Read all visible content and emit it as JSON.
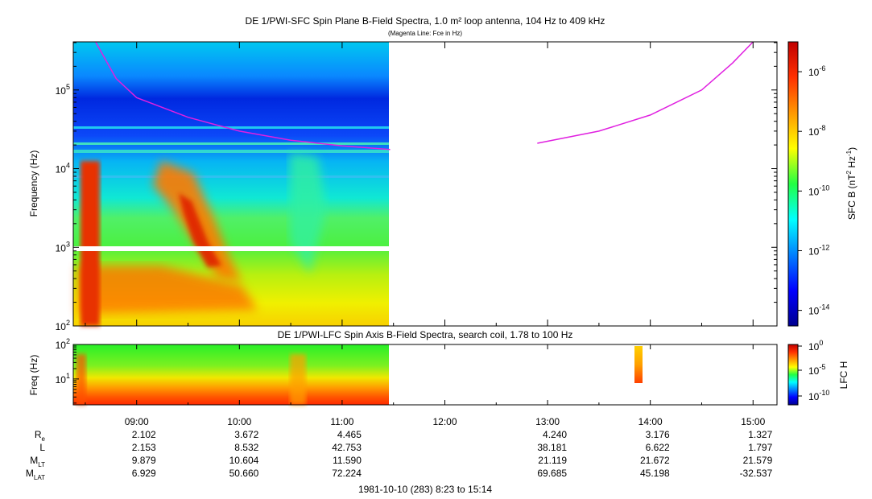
{
  "chart_data": [
    {
      "type": "heatmap",
      "title": "DE 1/PWI-SFC  Spin Plane B-Field Spectra, 1.0 m² loop antenna, 104 Hz to 409 kHz",
      "subtitle": "(Magenta Line: Fce in Hz)",
      "ylabel": "Frequency (Hz)",
      "y_scale": "log",
      "ylim": [
        100,
        409000
      ],
      "y_ticks": [
        "10^2",
        "10^3",
        "10^4",
        "10^5"
      ],
      "data_coverage_hours": [
        8.383,
        11.467
      ],
      "colorbar": {
        "label": "SFC B (nT^2 Hz^-1)",
        "scale": "log",
        "range": [
          3e-15,
          1e-05
        ],
        "ticks": [
          "10^-6",
          "10^-8",
          "10^-10",
          "10^-12",
          "10^-14"
        ]
      },
      "fce_line": {
        "color": "#e020e0",
        "segments": [
          {
            "x": [
              8.6,
              8.8,
              9.0,
              9.5,
              10.0,
              10.5,
              11.0,
              11.467
            ],
            "y": [
              409000,
              140000,
              80000,
              45000,
              30000,
              23000,
              19500,
              17500
            ]
          },
          {
            "x": [
              12.9,
              13.5,
              14.0,
              14.5,
              14.8,
              15.0
            ],
            "y": [
              21000,
              30000,
              48000,
              100000,
              220000,
              409000
            ]
          }
        ]
      }
    },
    {
      "type": "heatmap",
      "title": "DE 1/PWI-LFC  Spin Axis B-Field Spectra, search coil, 1.78 to 100 Hz",
      "ylabel": "Freq (Hz)",
      "y_scale": "log",
      "ylim": [
        1.78,
        100
      ],
      "y_ticks": [
        "10^1",
        "10^2"
      ],
      "data_coverage_hours": [
        8.383,
        11.467
      ],
      "colorbar": {
        "label": "LFC H",
        "scale": "log",
        "ticks": [
          "10^0",
          "10^-5",
          "10^-10"
        ]
      }
    }
  ],
  "time_axis": {
    "xlim": [
      8.383,
      15.233
    ],
    "tick_labels": [
      "09:00",
      "10:00",
      "11:00",
      "12:00",
      "13:00",
      "14:00",
      "15:00"
    ]
  },
  "ephemeris": {
    "row_labels": [
      {
        "main": "R",
        "sub": "e"
      },
      {
        "main": "L",
        "sub": ""
      },
      {
        "main": "M",
        "sub": "LT"
      },
      {
        "main": "M",
        "sub": "LAT"
      }
    ],
    "columns": [
      {
        "time": "09:00",
        "values": [
          "2.102",
          "2.153",
          "9.879",
          "6.929"
        ]
      },
      {
        "time": "10:00",
        "values": [
          "3.672",
          "8.532",
          "10.604",
          "50.660"
        ]
      },
      {
        "time": "11:00",
        "values": [
          "4.465",
          "42.753",
          "11.590",
          "72.224"
        ]
      },
      {
        "time": "13:00",
        "values": [
          "4.240",
          "38.181",
          "21.119",
          "69.685"
        ]
      },
      {
        "time": "14:00",
        "values": [
          "3.176",
          "6.622",
          "21.672",
          "45.198"
        ]
      },
      {
        "time": "15:00",
        "values": [
          "1.327",
          "1.797",
          "21.579",
          "-32.537"
        ]
      }
    ]
  },
  "footer": "1981-10-10 (283) 8:23 to 15:14"
}
